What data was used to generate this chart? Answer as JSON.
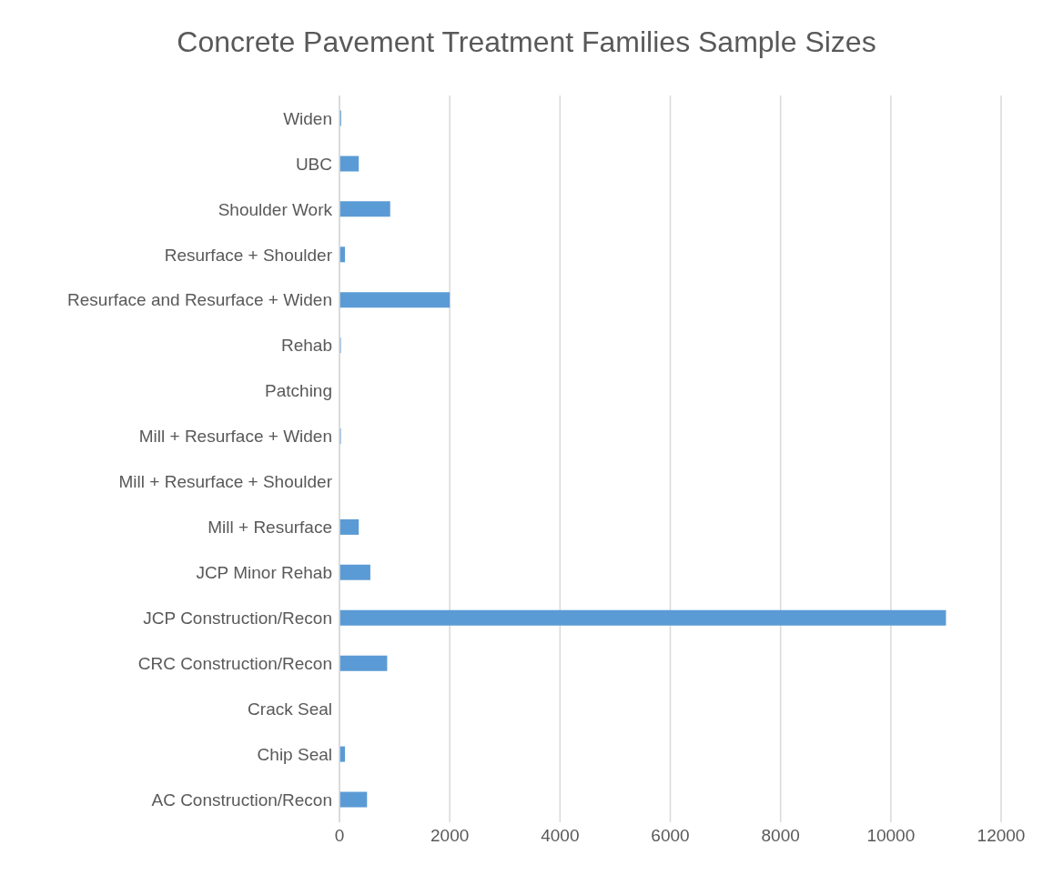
{
  "chart_data": {
    "type": "bar",
    "orientation": "horizontal",
    "title": "Concrete Pavement Treatment Families Sample Sizes",
    "categories": [
      "Widen",
      "UBC",
      "Shoulder Work",
      "Resurface + Shoulder",
      "Resurface and Resurface + Widen",
      "Rehab",
      "Patching",
      "Mill + Resurface + Widen",
      "Mill + Resurface + Shoulder",
      "Mill + Resurface",
      "JCP Minor Rehab",
      "JCP Construction/Recon",
      "CRC Construction/Recon",
      "Crack Seal",
      "Chip Seal",
      "AC Construction/Recon"
    ],
    "values": [
      30,
      350,
      920,
      100,
      2000,
      25,
      0,
      25,
      0,
      350,
      560,
      11000,
      865,
      0,
      100,
      500
    ],
    "color": "#5b9bd5",
    "xlim": [
      0,
      12000
    ],
    "xticks": [
      0,
      2000,
      4000,
      6000,
      8000,
      10000,
      12000
    ],
    "grid": "x",
    "legend": false
  }
}
